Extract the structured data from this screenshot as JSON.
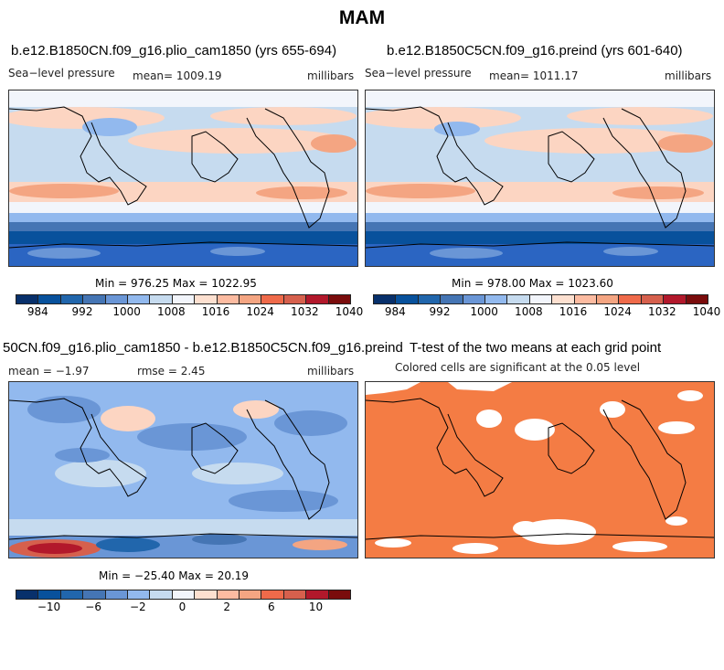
{
  "title": "MAM",
  "panels": {
    "p1": {
      "title": "b.e12.B1850CN.f09_g16.plio_cam1850 (yrs 655-694)",
      "left_label": "Sea−level pressure",
      "center_label": "mean= 1009.19",
      "right_label": "millibars",
      "minmax": "Min = 976.25 Max = 1022.95"
    },
    "p2": {
      "title": "b.e12.B1850C5CN.f09_g16.preind (yrs 601-640)",
      "left_label": "Sea−level pressure",
      "center_label": "mean= 1011.17",
      "right_label": "millibars",
      "minmax": "Min = 978.00 Max = 1023.60"
    },
    "p3": {
      "title": "50CN.f09_g16.plio_cam1850 - b.e12.B1850C5CN.f09_g16.preind",
      "left_label": "mean =   −1.97",
      "center_label": "rmse =    2.45",
      "right_label": "millibars",
      "minmax": "Min = −25.40 Max =  20.19"
    },
    "p4": {
      "title": "T-test of the two means at each grid point",
      "subtitle": "Colored cells are significant at the 0.05 level"
    }
  },
  "colorbars": {
    "abs": {
      "colors": [
        "#08306b",
        "#08519c",
        "#2166ac",
        "#4575b4",
        "#6a96d6",
        "#92b9ee",
        "#c6dbef",
        "#f2f5fb",
        "#fde0d0",
        "#fcbba1",
        "#f4a582",
        "#ef6a4a",
        "#d6604d",
        "#b2182b",
        "#7a0c0c"
      ],
      "tick_labels": [
        "984",
        "992",
        "1000",
        "1008",
        "1016",
        "1024",
        "1032",
        "1040"
      ]
    },
    "diff": {
      "colors": [
        "#08306b",
        "#08519c",
        "#2166ac",
        "#4575b4",
        "#6a96d6",
        "#92b9ee",
        "#c6dbef",
        "#f2f5fb",
        "#fde0d0",
        "#fcbba1",
        "#f4a582",
        "#ef6a4a",
        "#d6604d",
        "#b2182b",
        "#7a0c0c"
      ],
      "tick_labels": [
        "−10",
        "−6",
        "−2",
        "0",
        "2",
        "6",
        "10"
      ]
    }
  },
  "map_colors": {
    "deep_blue": "#08306b",
    "blue": "#2b65c2",
    "mid_blue": "#6a96d6",
    "light_blue": "#c6dbef",
    "pale": "#f2f5fb",
    "pale_red": "#fcd5c2",
    "salmon": "#f4a582",
    "significant": "#f47c44"
  }
}
